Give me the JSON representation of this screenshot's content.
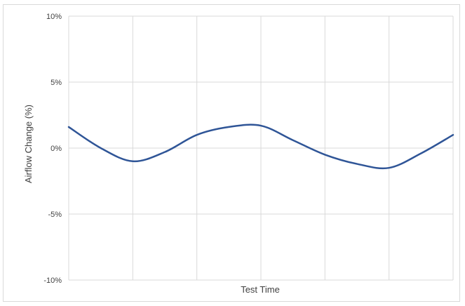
{
  "chart_data": {
    "type": "line",
    "title": "",
    "xlabel": "Test Time",
    "ylabel": "Airflow Change (%)",
    "ylim": [
      -10,
      10
    ],
    "yticks": [
      10,
      5,
      0,
      -5,
      -10
    ],
    "ytick_labels": [
      "10%",
      "5%",
      "0%",
      "-5%",
      "-10%"
    ],
    "xlim": [
      0,
      6
    ],
    "xticks": [
      0,
      1,
      2,
      3,
      4,
      5,
      6
    ],
    "grid": true,
    "legend": "none",
    "series": [
      {
        "color": "#2f5597",
        "x": [
          0,
          0.5,
          1,
          1.5,
          2,
          2.5,
          3,
          3.5,
          4,
          4.5,
          5,
          5.5,
          6
        ],
        "y": [
          1.6,
          0,
          -1.0,
          -0.3,
          1.0,
          1.6,
          1.7,
          0.6,
          -0.5,
          -1.2,
          -1.5,
          -0.4,
          1.0
        ]
      }
    ]
  }
}
